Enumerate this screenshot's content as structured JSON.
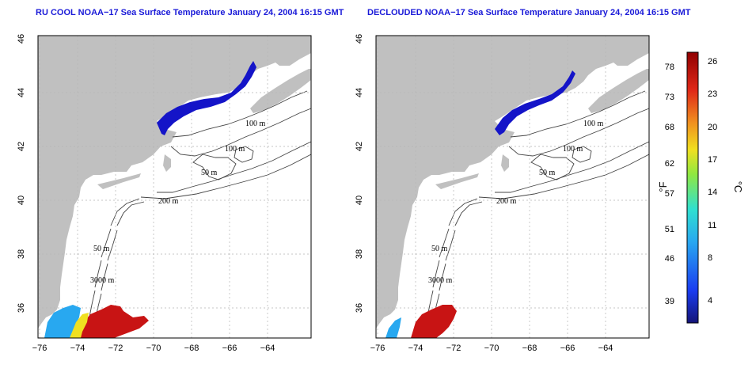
{
  "left_map": {
    "title": "RU COOL NOAA−17 Sea Surface Temperature January 24, 2004 16:15 GMT"
  },
  "right_map": {
    "title": "DECLOUDED NOAA−17 Sea Surface Temperature January 24, 2004 16:15 GMT"
  },
  "x_ticks": [
    "−76",
    "−74",
    "−72",
    "−70",
    "−68",
    "−66",
    "−64"
  ],
  "y_ticks": [
    "36",
    "38",
    "40",
    "42",
    "44",
    "46"
  ],
  "contours": {
    "c100a": "100 m",
    "c100b": "100 m",
    "c50": "50 m",
    "c200": "200 m",
    "c50s": "50 m",
    "c3000": "3000 m"
  },
  "colorbar": {
    "fahrenheit_ticks": [
      "78",
      "73",
      "68",
      "62",
      "57",
      "51",
      "46",
      "39"
    ],
    "celsius_ticks": [
      "26",
      "23",
      "20",
      "17",
      "14",
      "11",
      "8",
      "4"
    ],
    "fahrenheit_unit": "°F",
    "celsius_unit": "°C"
  },
  "colors": {
    "land": "#c0c0c0",
    "sea": "#ffffff",
    "cold": "#1414c8",
    "warm": "#c81414"
  }
}
